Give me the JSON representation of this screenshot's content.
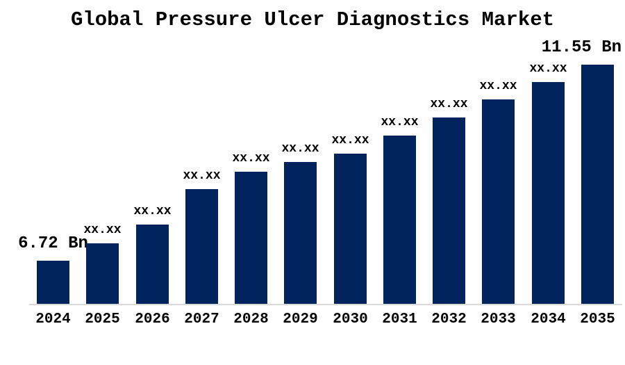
{
  "chart_data": {
    "type": "bar",
    "title": "Global Pressure Ulcer Diagnostics Market",
    "unit": "Bn",
    "categories": [
      "2024",
      "2025",
      "2026",
      "2027",
      "2028",
      "2029",
      "2030",
      "2031",
      "2032",
      "2033",
      "2034",
      "2035"
    ],
    "bar_labels": [
      "6.72 Bn",
      "xx.xx",
      "xx.xx",
      "xx.xx",
      "xx.xx",
      "xx.xx",
      "xx.xx",
      "xx.xx",
      "xx.xx",
      "xx.xx",
      "xx.xx",
      "11.55 Bn"
    ],
    "known_values": {
      "2024": "6.72 Bn",
      "2035": "11.55 Bn"
    },
    "values_estimated": [
      6.72,
      7.15,
      7.61,
      8.48,
      8.91,
      9.15,
      9.36,
      9.8,
      10.25,
      10.69,
      11.12,
      11.55
    ],
    "values_note": "Only 2024 and 2035 values are shown in the image; intermediate bars are masked as xx.xx and their values are estimated from bar heights.",
    "xlabel": "",
    "ylabel": "",
    "ylim": [
      5.66,
      11.7
    ],
    "grid": false,
    "legend": "none",
    "colors": {
      "bar": "#02245e",
      "axis_line": "#d9d9d9",
      "text": "#000000",
      "background": "#ffffff"
    }
  }
}
